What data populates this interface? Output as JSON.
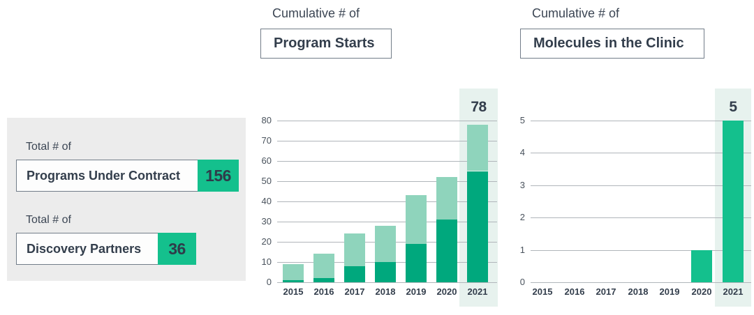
{
  "stats_panel": {
    "items": [
      {
        "label": "Total # of",
        "name": "Programs Under Contract",
        "value": "156"
      },
      {
        "label": "Total # of",
        "name": "Discovery Partners",
        "value": "36"
      }
    ]
  },
  "chart_data": [
    {
      "type": "bar",
      "stacked": true,
      "title": "Cumulative # of",
      "title_box": "Program Starts",
      "categories": [
        "2015",
        "2016",
        "2017",
        "2018",
        "2019",
        "2020",
        "2021"
      ],
      "series": [
        {
          "name": "dark-green-segment",
          "color": "#00a87d",
          "values": [
            1,
            2,
            8,
            10,
            19,
            31,
            55
          ]
        },
        {
          "name": "light-green-segment",
          "color": "#8fd4bc",
          "values": [
            8,
            12,
            16,
            18,
            24,
            21,
            23
          ]
        }
      ],
      "totals": [
        9,
        14,
        24,
        28,
        43,
        52,
        78
      ],
      "ylim": [
        0,
        80
      ],
      "yticks": [
        "0",
        "10",
        "20",
        "30",
        "40",
        "50",
        "60",
        "70",
        "80"
      ],
      "grid": true,
      "legend": false,
      "highlight_category": "2021",
      "highlight_label": "78"
    },
    {
      "type": "bar",
      "stacked": false,
      "title": "Cumulative # of",
      "title_box": "Molecules in the Clinic",
      "categories": [
        "2015",
        "2016",
        "2017",
        "2018",
        "2019",
        "2020",
        "2021"
      ],
      "series": [
        {
          "name": "bright-green-bar",
          "color": "#14c08d",
          "values": [
            0,
            0,
            0,
            0,
            0,
            1,
            5
          ]
        }
      ],
      "ylim": [
        0,
        5
      ],
      "yticks": [
        "0",
        "1",
        "2",
        "3",
        "4",
        "5"
      ],
      "grid": true,
      "legend": false,
      "highlight_category": "2021",
      "highlight_label": "5"
    }
  ],
  "colors": {
    "accent_green": "#14c08d",
    "dark_green": "#00a87d",
    "light_green": "#8fd4bc",
    "highlight_band": "#e7f2ee",
    "panel_bg": "#ececec",
    "gridline": "#b0b5ba",
    "box_border": "#717c88",
    "text_dark": "#333e4c",
    "text_mid": "#49525c"
  }
}
